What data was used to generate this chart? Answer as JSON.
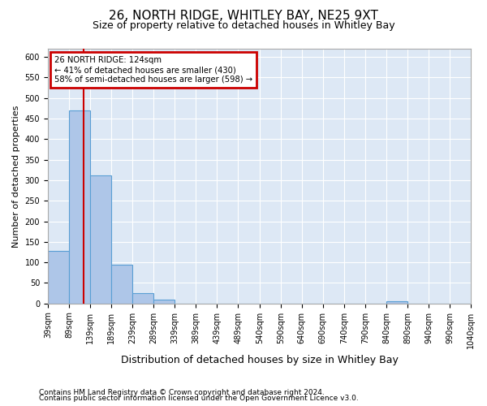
{
  "title1": "26, NORTH RIDGE, WHITLEY BAY, NE25 9XT",
  "title2": "Size of property relative to detached houses in Whitley Bay",
  "xlabel": "Distribution of detached houses by size in Whitley Bay",
  "ylabel": "Number of detached properties",
  "footnote1": "Contains HM Land Registry data © Crown copyright and database right 2024.",
  "footnote2": "Contains public sector information licensed under the Open Government Licence v3.0.",
  "property_size": 124,
  "annotation_title": "26 NORTH RIDGE: 124sqm",
  "annotation_line1": "← 41% of detached houses are smaller (430)",
  "annotation_line2": "58% of semi-detached houses are larger (598) →",
  "bin_edges": [
    39,
    89,
    139,
    189,
    239,
    289,
    339,
    389,
    439,
    489,
    540,
    590,
    640,
    690,
    740,
    790,
    840,
    890,
    940,
    990,
    1040
  ],
  "bar_heights": [
    128,
    470,
    311,
    95,
    25,
    10,
    0,
    0,
    0,
    0,
    0,
    0,
    0,
    0,
    0,
    0,
    5,
    0,
    0,
    0
  ],
  "bar_color": "#aec6e8",
  "bar_edge_color": "#5a9fd4",
  "red_line_color": "#cc0000",
  "annotation_box_color": "#cc0000",
  "ylim": [
    0,
    620
  ],
  "yticks": [
    0,
    50,
    100,
    150,
    200,
    250,
    300,
    350,
    400,
    450,
    500,
    550,
    600
  ],
  "background_color": "#dde8f5",
  "grid_color": "#ffffff",
  "fig_bg_color": "#ffffff",
  "title1_fontsize": 11,
  "title2_fontsize": 9,
  "ylabel_fontsize": 8,
  "xlabel_fontsize": 9,
  "tick_fontsize": 7,
  "footnote_fontsize": 6.5
}
